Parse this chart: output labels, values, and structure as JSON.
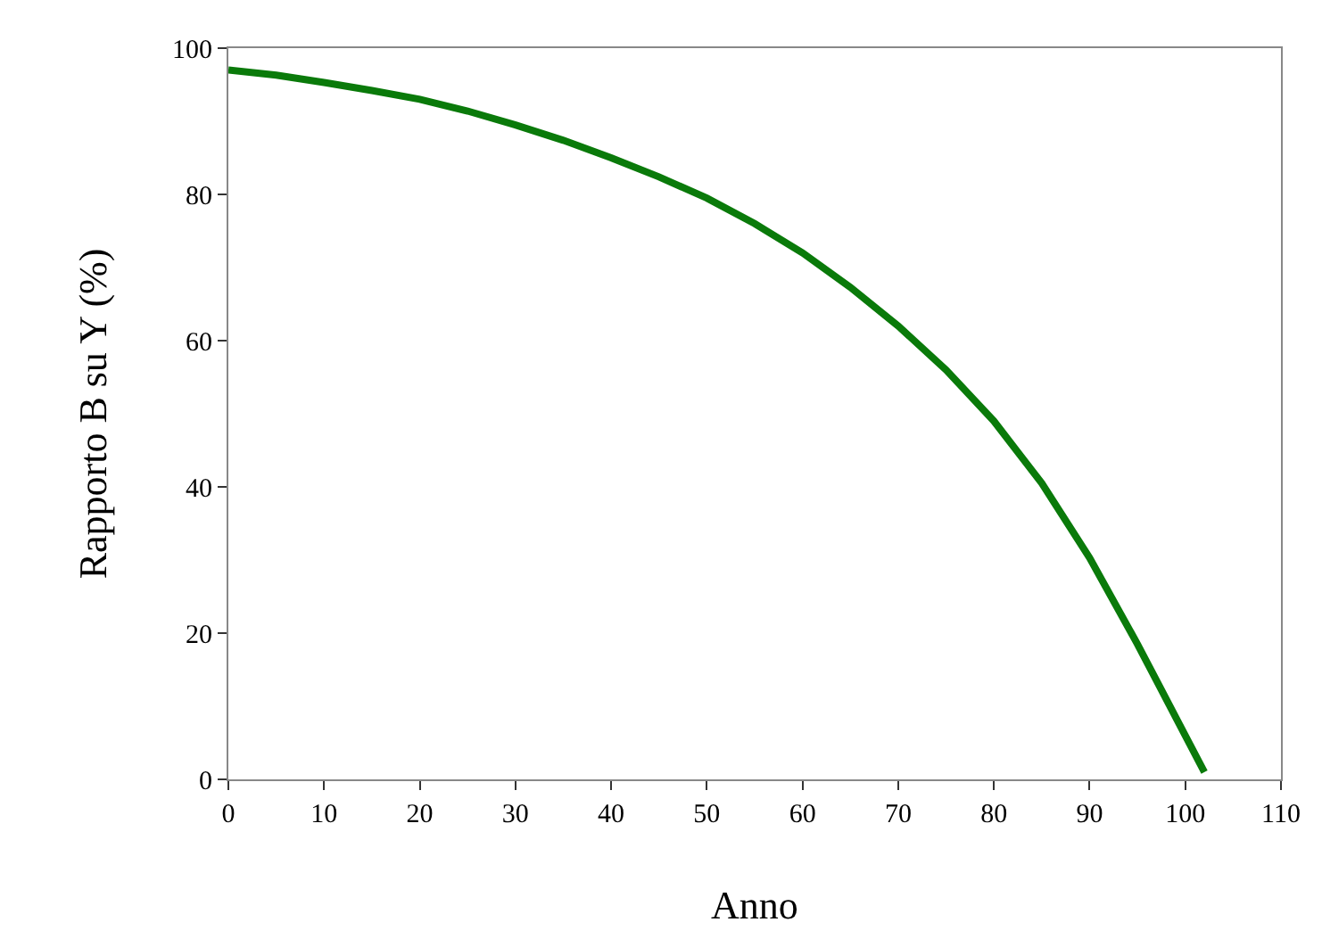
{
  "chart_data": {
    "type": "line",
    "xlabel": "Anno",
    "ylabel": "Rapporto B su Y (%)",
    "x": [
      0,
      5,
      10,
      15,
      20,
      25,
      30,
      35,
      40,
      45,
      50,
      55,
      60,
      65,
      70,
      75,
      80,
      85,
      90,
      95,
      100,
      102
    ],
    "series": [
      {
        "color": "#0a7a0a",
        "values": [
          97,
          96.3,
          95.3,
          94.2,
          93,
          91.4,
          89.5,
          87.4,
          85,
          82.4,
          79.5,
          76,
          72,
          67.3,
          62,
          56,
          49,
          40.5,
          30.3,
          18.5,
          6,
          1
        ]
      }
    ],
    "xlim": [
      0,
      110
    ],
    "xticks": [
      0,
      10,
      20,
      30,
      40,
      50,
      60,
      70,
      80,
      90,
      100,
      110
    ],
    "ylim": [
      0,
      100
    ],
    "yticks": [
      0,
      20,
      40,
      60,
      80,
      100
    ],
    "marker": "none",
    "line_style": "solid"
  }
}
